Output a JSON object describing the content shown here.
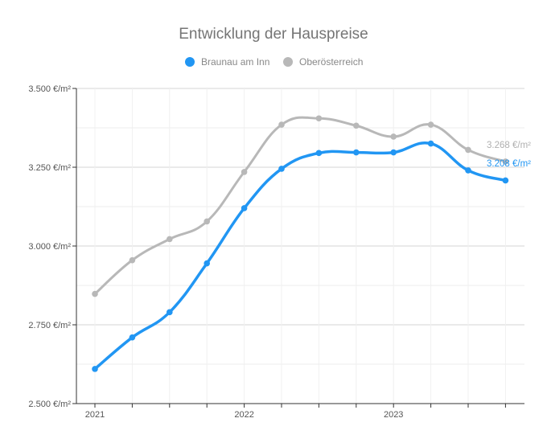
{
  "chart_data": {
    "type": "line",
    "title": "Entwicklung der Hauspreise",
    "x": [
      0,
      1,
      2,
      3,
      4,
      5,
      6,
      7,
      8,
      9,
      10,
      11
    ],
    "x_tick_labels": [
      {
        "x": 0,
        "label": "2021"
      },
      {
        "x": 4,
        "label": "2022"
      },
      {
        "x": 8,
        "label": "2023"
      }
    ],
    "ylim": [
      2500,
      3500
    ],
    "y_ticks": [
      {
        "value": 2500,
        "label": "2.500 €/m²"
      },
      {
        "value": 2750,
        "label": "2.750 €/m²"
      },
      {
        "value": 3000,
        "label": "3.000 €/m²"
      },
      {
        "value": 3250,
        "label": "3.250 €/m²"
      },
      {
        "value": 3500,
        "label": "3.500 €/m²"
      }
    ],
    "grid": true,
    "legend_position": "top-center",
    "series": [
      {
        "name": "Braunau am Inn",
        "color": "#2196f3",
        "values": [
          2610,
          2710,
          2790,
          2945,
          3120,
          3245,
          3295,
          3297,
          3297,
          3325,
          3240,
          3208
        ],
        "end_label": "3.208 €/m²"
      },
      {
        "name": "Oberösterreich",
        "color": "#b8b8b8",
        "values": [
          2848,
          2955,
          3022,
          3078,
          3235,
          3385,
          3405,
          3382,
          3347,
          3385,
          3305,
          3268
        ],
        "end_label": "3.268 €/m²"
      }
    ]
  }
}
